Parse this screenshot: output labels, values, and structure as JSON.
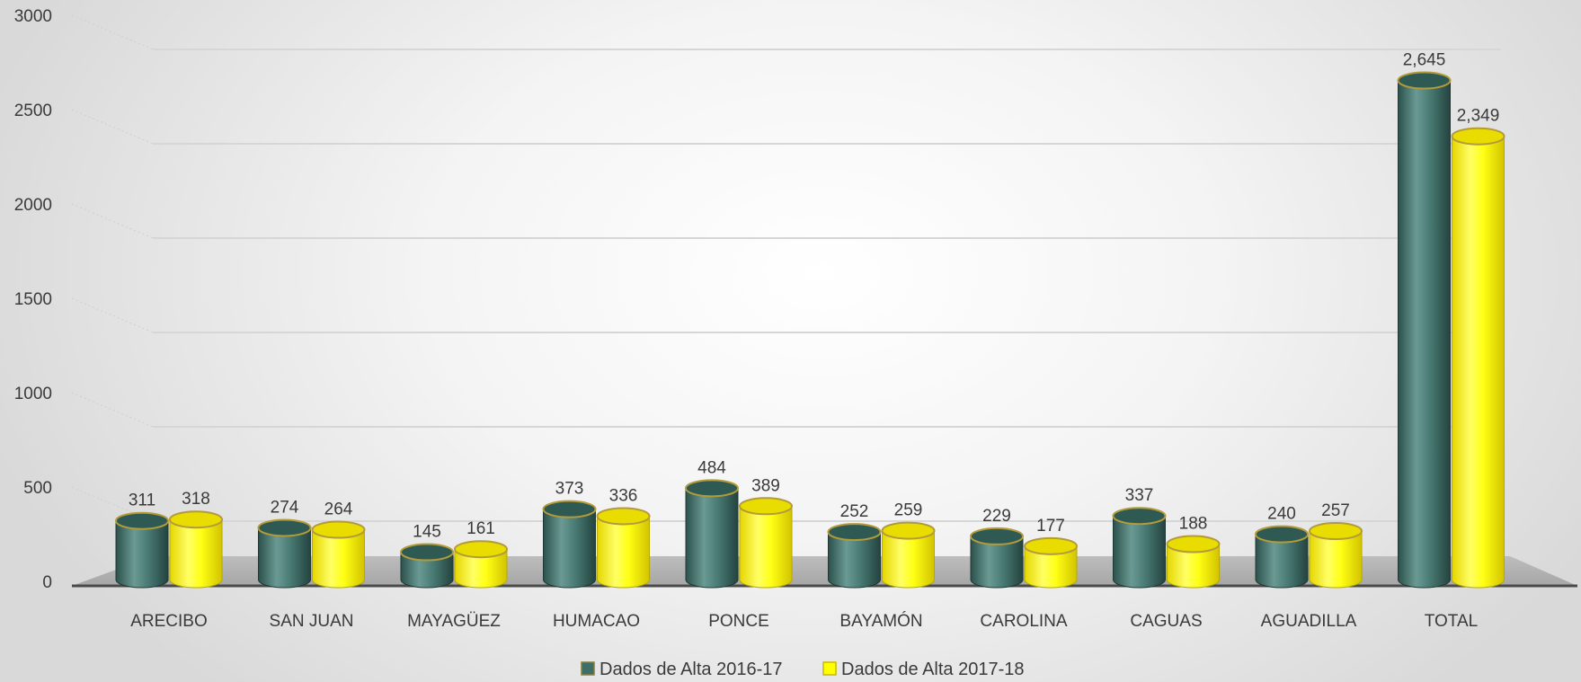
{
  "chart_data": {
    "type": "bar",
    "categories": [
      "ARECIBO",
      "SAN JUAN",
      "MAYAGÜEZ",
      "HUMACAO",
      "PONCE",
      "BAYAMÓN",
      "CAROLINA",
      "CAGUAS",
      "AGUADILLA",
      "TOTAL"
    ],
    "series": [
      {
        "name": "Dados de Alta 2016-17",
        "color": "#3e6e68",
        "values": [
          311,
          274,
          145,
          373,
          484,
          252,
          229,
          337,
          240,
          2645
        ],
        "labels": [
          "311",
          "274",
          "145",
          "373",
          "484",
          "252",
          "229",
          "337",
          "240",
          "2,645"
        ]
      },
      {
        "name": "Dados de Alta 2017-18",
        "color": "#ffff00",
        "values": [
          318,
          264,
          161,
          336,
          389,
          259,
          177,
          188,
          257,
          2349
        ],
        "labels": [
          "318",
          "264",
          "161",
          "336",
          "389",
          "259",
          "177",
          "188",
          "257",
          "2,349"
        ]
      }
    ],
    "ylim": [
      0,
      3000
    ],
    "yticks": [
      "0",
      "500",
      "1000",
      "1500",
      "2000",
      "2500",
      "3000"
    ],
    "bar_shape": "cylinder",
    "legend_position": "bottom",
    "grid": true
  }
}
